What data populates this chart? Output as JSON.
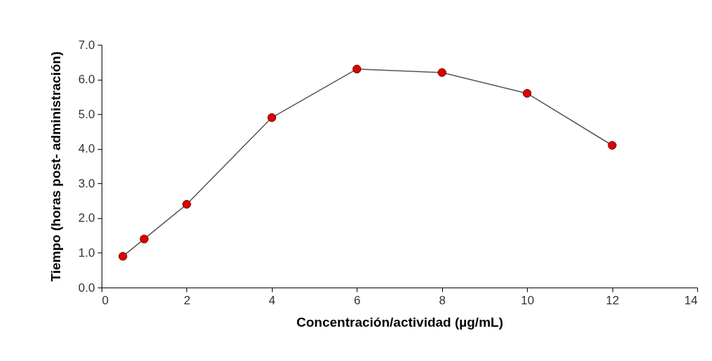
{
  "chart_data": {
    "type": "line",
    "xlabel": "Concentración/actividad (µg/mL)",
    "ylabel": "Tiempo (horas post- administración)",
    "x": [
      0.5,
      1,
      2,
      4,
      6,
      8,
      10,
      12
    ],
    "series": [
      {
        "color": "#e00000",
        "values": [
          0.9,
          1.4,
          2.4,
          4.9,
          6.3,
          6.2,
          5.6,
          4.1
        ]
      }
    ],
    "xlim": [
      0,
      14
    ],
    "xticks": [
      0,
      2,
      4,
      6,
      8,
      10,
      12,
      14
    ],
    "ylim": [
      0,
      7
    ],
    "yticks": [
      {
        "value": 0,
        "label": "0.0"
      },
      {
        "value": 1,
        "label": "1.0"
      },
      {
        "value": 2,
        "label": "2.0"
      },
      {
        "value": 3,
        "label": "3.0"
      },
      {
        "value": 4,
        "label": "4.0"
      },
      {
        "value": 5,
        "label": "5.0"
      },
      {
        "value": 6,
        "label": "6.0"
      },
      {
        "value": 7,
        "label": "7.0"
      }
    ],
    "grid": false,
    "legend": false,
    "marker": "circle",
    "line_style": "solid"
  }
}
